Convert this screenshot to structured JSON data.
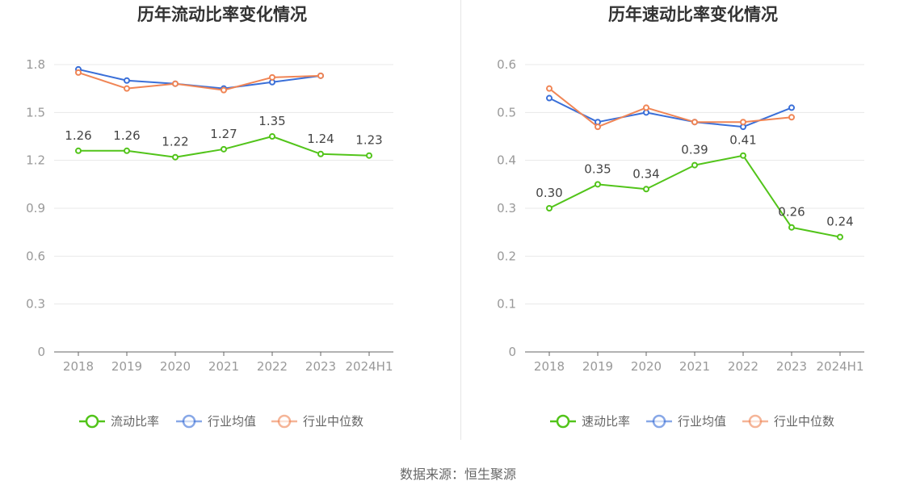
{
  "source": "数据来源：恒生聚源",
  "chart_data": [
    {
      "type": "line",
      "title": "历年流动比率变化情况",
      "categories": [
        "2018",
        "2019",
        "2020",
        "2021",
        "2022",
        "2023",
        "2024H1"
      ],
      "ylim": [
        0,
        1.8
      ],
      "yticks": [
        0,
        0.3,
        0.6,
        0.9,
        1.2,
        1.5,
        1.8
      ],
      "ytick_labels": [
        "0",
        "0.3",
        "0.6",
        "0.9",
        "1.2",
        "1.5",
        "1.8"
      ],
      "grid": true,
      "legend_position": "bottom",
      "series": [
        {
          "name": "流动比率",
          "color": "#52c41a",
          "values": [
            1.26,
            1.26,
            1.22,
            1.27,
            1.35,
            1.24,
            1.23
          ],
          "labels": [
            "1.26",
            "1.26",
            "1.22",
            "1.27",
            "1.35",
            "1.24",
            "1.23"
          ]
        },
        {
          "name": "行业均值",
          "color": "#3a6fd8",
          "values": [
            1.77,
            1.7,
            1.68,
            1.65,
            1.69,
            1.73,
            null
          ]
        },
        {
          "name": "行业中位数",
          "color": "#f08555",
          "values": [
            1.75,
            1.65,
            1.68,
            1.64,
            1.72,
            1.73,
            null
          ]
        }
      ]
    },
    {
      "type": "line",
      "title": "历年速动比率变化情况",
      "categories": [
        "2018",
        "2019",
        "2020",
        "2021",
        "2022",
        "2023",
        "2024H1"
      ],
      "ylim": [
        0,
        0.6
      ],
      "yticks": [
        0,
        0.1,
        0.2,
        0.3,
        0.4,
        0.5,
        0.6
      ],
      "ytick_labels": [
        "0",
        "0.1",
        "0.2",
        "0.3",
        "0.4",
        "0.5",
        "0.6"
      ],
      "grid": true,
      "legend_position": "bottom",
      "series": [
        {
          "name": "速动比率",
          "color": "#52c41a",
          "values": [
            0.3,
            0.35,
            0.34,
            0.39,
            0.41,
            0.26,
            0.24
          ],
          "labels": [
            "0.30",
            "0.35",
            "0.34",
            "0.39",
            "0.41",
            "0.26",
            "0.24"
          ]
        },
        {
          "name": "行业均值",
          "color": "#3a6fd8",
          "values": [
            0.53,
            0.48,
            0.5,
            0.48,
            0.47,
            0.51,
            null
          ]
        },
        {
          "name": "行业中位数",
          "color": "#f08555",
          "values": [
            0.55,
            0.47,
            0.51,
            0.48,
            0.48,
            0.49,
            null
          ]
        }
      ]
    }
  ]
}
